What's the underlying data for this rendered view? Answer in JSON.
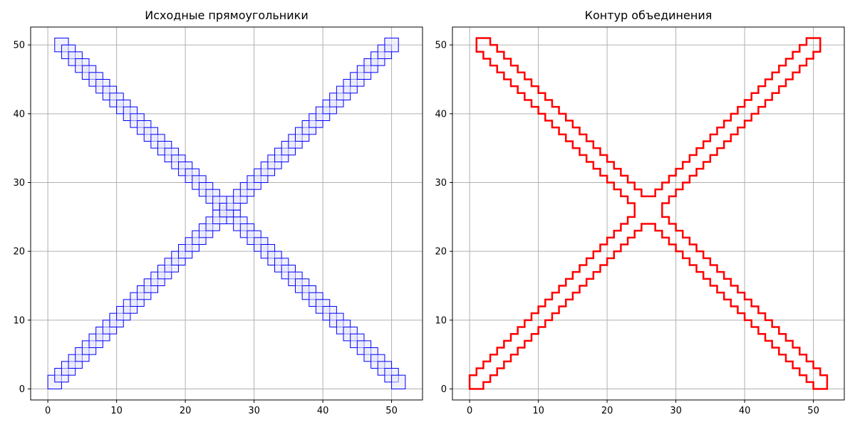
{
  "chart_data": [
    {
      "type": "rectangles",
      "title": "Исходные прямоугольники",
      "xlim": [
        -2.5,
        54.5
      ],
      "ylim": [
        -1.6,
        52.6
      ],
      "xticks": [
        0,
        10,
        20,
        30,
        40,
        50
      ],
      "yticks": [
        0,
        10,
        20,
        30,
        40,
        50
      ],
      "grid": true,
      "edge_color": "#0000ff",
      "fill_color": "#e6e6fa",
      "diagonal_from_top_left": {
        "first_rect": [
          1,
          49,
          3,
          51
        ],
        "step": [
          1,
          -1
        ],
        "count": 50,
        "last_rect": [
          50,
          0,
          52,
          2
        ]
      },
      "diagonal_from_bottom_left": {
        "first_rect": [
          0,
          0,
          2,
          2
        ],
        "step": [
          1,
          1
        ],
        "count": 50,
        "last_rect": [
          49,
          49,
          51,
          51
        ]
      }
    },
    {
      "type": "line",
      "title": "Контур объединения",
      "xlim": [
        -2.5,
        54.5
      ],
      "ylim": [
        -1.6,
        52.6
      ],
      "xticks": [
        0,
        10,
        20,
        30,
        40,
        50
      ],
      "yticks": [
        0,
        10,
        20,
        30,
        40,
        50
      ],
      "grid": true,
      "line_color": "#ff0000",
      "outline": "staircase boundary of the union of the rectangles shown on the left"
    }
  ]
}
